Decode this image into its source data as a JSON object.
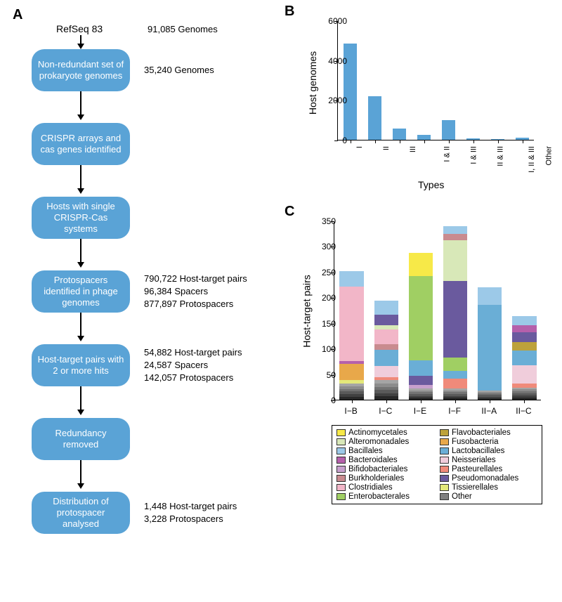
{
  "panelLabels": {
    "A": "A",
    "B": "B",
    "C": "C"
  },
  "flowchart": {
    "node_color": "#5aa3d6",
    "node_text_color": "#ffffff",
    "start": {
      "label": "RefSeq 83",
      "annotation": "91,085 Genomes"
    },
    "nodes": [
      {
        "label": "Non-redundant set of prokaryote genomes",
        "annotation": "35,240 Genomes"
      },
      {
        "label": "CRISPR arrays and cas genes identified",
        "annotation": ""
      },
      {
        "label": "Hosts with single CRISPR-Cas systems",
        "annotation": ""
      },
      {
        "label": "Protospacers identified in phage genomes",
        "annotation": "790,722 Host-target pairs\n96,384 Spacers\n877,897 Protospacers"
      },
      {
        "label": "Host-target pairs with 2 or more hits",
        "annotation": "54,882 Host-target pairs\n24,587 Spacers\n142,057 Protospacers"
      },
      {
        "label": "Redundancy removed",
        "annotation": ""
      },
      {
        "label": "Distribution of protospacer analysed",
        "annotation": "1,448 Host-target pairs\n3,228 Protospacers"
      }
    ]
  },
  "chartB": {
    "type": "bar",
    "bar_color": "#5aa3d6",
    "background_color": "#ffffff",
    "ylabel": "Host genomes",
    "xlabel": "Types",
    "ylim": [
      0,
      6000
    ],
    "ytick_step": 2000,
    "categories": [
      "I",
      "II",
      "III",
      "I & II",
      "I & III",
      "II & III",
      "I, II & III",
      "Other"
    ],
    "values": [
      4830,
      2190,
      580,
      260,
      980,
      70,
      40,
      90
    ],
    "bar_width": 0.55,
    "label_fontsize": 12
  },
  "chartC": {
    "type": "stacked_bar",
    "ylabel": "Host-target pairs",
    "ylim": [
      0,
      350
    ],
    "ytick_step": 50,
    "categories": [
      "I−B",
      "I−C",
      "I−E",
      "I−F",
      "II−A",
      "II−C"
    ],
    "bar_width": 0.7,
    "taxa_colors": {
      "Actinomycetales": "#f7e948",
      "Alteromonadales": "#d8e8b8",
      "Bacillales": "#9cc9e8",
      "Bacteroidales": "#b560ab",
      "Bifidobacteriales": "#c7a0cd",
      "Burkholderiales": "#c98b8f",
      "Clostridiales": "#f2b6c8",
      "Enterobacterales": "#a0cf63",
      "Flavobacteriales": "#bda23b",
      "Fusobacteria": "#e8a84a",
      "Lactobacillales": "#6aaed6",
      "Neisseriales": "#f0cddb",
      "Pasteurellales": "#f08a7a",
      "Pseudomonadales": "#6a5a9e",
      "Tissierellales": "#e4e87a",
      "Other": "#808080"
    },
    "stacks": {
      "I−B": [
        {
          "taxon": "Other",
          "v": 32
        },
        {
          "taxon": "Tissierellales",
          "v": 6
        },
        {
          "taxon": "Fusobacteria",
          "v": 32
        },
        {
          "taxon": "Bacteroidales",
          "v": 6
        },
        {
          "taxon": "Clostridiales",
          "v": 145
        },
        {
          "taxon": "Bacillales",
          "v": 30
        }
      ],
      "I−C": [
        {
          "taxon": "Other",
          "v": 38
        },
        {
          "taxon": "Pasteurellales",
          "v": 6
        },
        {
          "taxon": "Neisseriales",
          "v": 22
        },
        {
          "taxon": "Lactobacillales",
          "v": 32
        },
        {
          "taxon": "Burkholderiales",
          "v": 10
        },
        {
          "taxon": "Clostridiales",
          "v": 30
        },
        {
          "taxon": "Alteromonadales",
          "v": 8
        },
        {
          "taxon": "Pseudomonadales",
          "v": 20
        },
        {
          "taxon": "Bacillales",
          "v": 28
        }
      ],
      "I−E": [
        {
          "taxon": "Other",
          "v": 22
        },
        {
          "taxon": "Bifidobacteriales",
          "v": 7
        },
        {
          "taxon": "Pseudomonadales",
          "v": 18
        },
        {
          "taxon": "Lactobacillales",
          "v": 30
        },
        {
          "taxon": "Enterobacterales",
          "v": 165
        },
        {
          "taxon": "Actinomycetales",
          "v": 45
        }
      ],
      "I−F": [
        {
          "taxon": "Other",
          "v": 22
        },
        {
          "taxon": "Pasteurellales",
          "v": 20
        },
        {
          "taxon": "Lactobacillales",
          "v": 15
        },
        {
          "taxon": "Enterobacterales",
          "v": 25
        },
        {
          "taxon": "Pseudomonadales",
          "v": 150
        },
        {
          "taxon": "Alteromonadales",
          "v": 80
        },
        {
          "taxon": "Burkholderiales",
          "v": 12
        },
        {
          "taxon": "Bacillales",
          "v": 15
        }
      ],
      "II−A": [
        {
          "taxon": "Other",
          "v": 18
        },
        {
          "taxon": "Lactobacillales",
          "v": 168
        },
        {
          "taxon": "Bacillales",
          "v": 34
        }
      ],
      "II−C": [
        {
          "taxon": "Other",
          "v": 24
        },
        {
          "taxon": "Pasteurellales",
          "v": 8
        },
        {
          "taxon": "Neisseriales",
          "v": 36
        },
        {
          "taxon": "Lactobacillales",
          "v": 28
        },
        {
          "taxon": "Flavobacteriales",
          "v": 16
        },
        {
          "taxon": "Pseudomonadales",
          "v": 20
        },
        {
          "taxon": "Bacteroidales",
          "v": 14
        },
        {
          "taxon": "Bacillales",
          "v": 18
        }
      ]
    },
    "legend_order_col1": [
      "Actinomycetales",
      "Alteromonadales",
      "Bacillales",
      "Bacteroidales",
      "Bifidobacteriales",
      "Burkholderiales",
      "Clostridiales",
      "Enterobacterales"
    ],
    "legend_order_col2": [
      "Flavobacteriales",
      "Fusobacteria",
      "Lactobacillales",
      "Neisseriales",
      "Pasteurellales",
      "Pseudomonadales",
      "Tissierellales",
      "Other"
    ]
  }
}
